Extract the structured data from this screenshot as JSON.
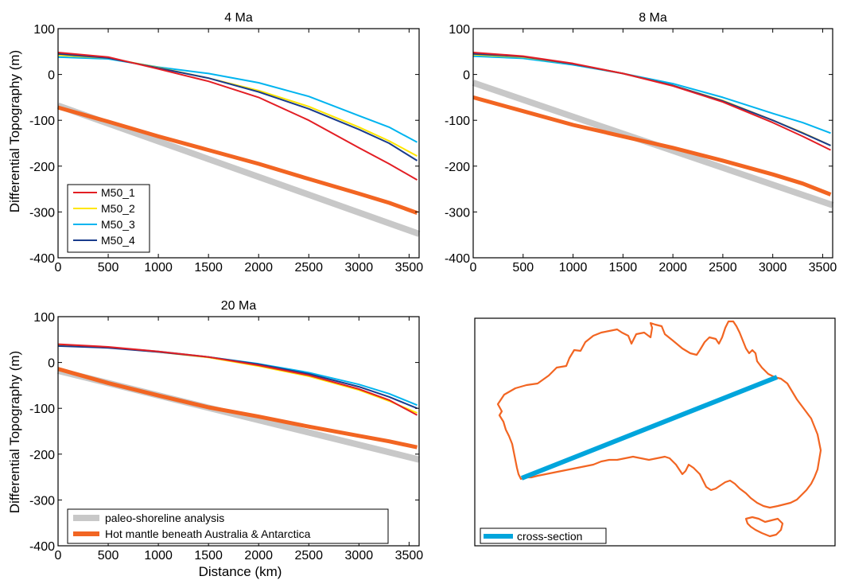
{
  "figure": {
    "xlabel": "Distance (km)",
    "ylabel": "Differential Topography (m)"
  },
  "colors": {
    "M50_1": "#e31e24",
    "M50_2": "#ffe600",
    "M50_3": "#00b4ef",
    "M50_4": "#1a3c8c",
    "paleo": "#c8c8c8",
    "hot": "#f26522",
    "map_outline": "#f26522",
    "cross_section": "#00a5dc"
  },
  "chart_data": [
    {
      "type": "line",
      "title": "4 Ma",
      "xlim": [
        0,
        3600
      ],
      "ylim": [
        -400,
        100
      ],
      "xticks": [
        0,
        500,
        1000,
        1500,
        2000,
        2500,
        3000,
        3500
      ],
      "yticks": [
        100,
        0,
        -100,
        -200,
        -300,
        -400
      ],
      "legend": {
        "placement": "lower-left",
        "entries": [
          "M50_1",
          "M50_2",
          "M50_3",
          "M50_4"
        ]
      },
      "series": [
        {
          "name": "M50_1",
          "color_key": "M50_1",
          "width": 2,
          "x": [
            0,
            500,
            1000,
            1500,
            2000,
            2500,
            3000,
            3300,
            3580
          ],
          "y": [
            48,
            38,
            12,
            -15,
            -50,
            -100,
            -160,
            -195,
            -230
          ]
        },
        {
          "name": "M50_2",
          "color_key": "M50_2",
          "width": 2,
          "x": [
            0,
            500,
            1000,
            1500,
            2000,
            2500,
            3000,
            3300,
            3580
          ],
          "y": [
            42,
            36,
            15,
            -8,
            -35,
            -70,
            -115,
            -145,
            -178
          ]
        },
        {
          "name": "M50_3",
          "color_key": "M50_3",
          "width": 2,
          "x": [
            0,
            500,
            1000,
            1500,
            2000,
            2500,
            3000,
            3300,
            3580
          ],
          "y": [
            38,
            34,
            16,
            2,
            -18,
            -48,
            -90,
            -115,
            -148
          ]
        },
        {
          "name": "M50_4",
          "color_key": "M50_4",
          "width": 2,
          "x": [
            0,
            500,
            1000,
            1500,
            2000,
            2500,
            3000,
            3300,
            3580
          ],
          "y": [
            45,
            36,
            14,
            -8,
            -38,
            -75,
            -120,
            -150,
            -188
          ]
        },
        {
          "name": "",
          "color_key": "paleo",
          "width": 8,
          "x": [
            0,
            3600
          ],
          "y": [
            -68,
            -348
          ]
        },
        {
          "name": "",
          "color_key": "hot",
          "width": 5,
          "x": [
            0,
            500,
            1000,
            1500,
            2000,
            2500,
            3000,
            3300,
            3580
          ],
          "y": [
            -72,
            -103,
            -135,
            -165,
            -195,
            -228,
            -260,
            -280,
            -302
          ]
        }
      ]
    },
    {
      "type": "line",
      "title": "8 Ma",
      "xlim": [
        0,
        3600
      ],
      "ylim": [
        -400,
        100
      ],
      "xticks": [
        0,
        500,
        1000,
        1500,
        2000,
        2500,
        3000,
        3500
      ],
      "yticks": [
        100,
        0,
        -100,
        -200,
        -300,
        -400
      ],
      "series": [
        {
          "name": "M50_1",
          "color_key": "M50_1",
          "width": 2,
          "x": [
            0,
            500,
            1000,
            1500,
            2000,
            2500,
            3000,
            3300,
            3580
          ],
          "y": [
            48,
            40,
            24,
            2,
            -25,
            -60,
            -105,
            -135,
            -165
          ]
        },
        {
          "name": "M50_2",
          "color_key": "M50_2",
          "width": 2,
          "x": [
            0,
            500,
            1000,
            1500,
            2000,
            2500,
            3000,
            3300,
            3580
          ],
          "y": [
            43,
            38,
            23,
            2,
            -24,
            -57,
            -100,
            -127,
            -155
          ]
        },
        {
          "name": "M50_3",
          "color_key": "M50_3",
          "width": 2,
          "x": [
            0,
            500,
            1000,
            1500,
            2000,
            2500,
            3000,
            3300,
            3580
          ],
          "y": [
            40,
            35,
            21,
            2,
            -20,
            -50,
            -85,
            -105,
            -128
          ]
        },
        {
          "name": "M50_4",
          "color_key": "M50_4",
          "width": 2,
          "x": [
            0,
            500,
            1000,
            1500,
            2000,
            2500,
            3000,
            3300,
            3580
          ],
          "y": [
            45,
            39,
            23,
            2,
            -24,
            -58,
            -100,
            -128,
            -155
          ]
        },
        {
          "name": "",
          "color_key": "paleo",
          "width": 8,
          "x": [
            0,
            3600
          ],
          "y": [
            -18,
            -285
          ]
        },
        {
          "name": "",
          "color_key": "hot",
          "width": 5,
          "x": [
            0,
            500,
            1000,
            1500,
            2000,
            2500,
            3000,
            3300,
            3580
          ],
          "y": [
            -50,
            -80,
            -110,
            -135,
            -160,
            -188,
            -218,
            -238,
            -262
          ]
        }
      ]
    },
    {
      "type": "line",
      "title": "20 Ma",
      "xlim": [
        0,
        3600
      ],
      "ylim": [
        -400,
        100
      ],
      "xticks": [
        0,
        500,
        1000,
        1500,
        2000,
        2500,
        3000,
        3500
      ],
      "yticks": [
        100,
        0,
        -100,
        -200,
        -300,
        -400
      ],
      "legend": {
        "placement": "bottom",
        "entries": [
          "paleo-shoreline analysis",
          "Hot mantle beneath Australia & Antarctica"
        ]
      },
      "series": [
        {
          "name": "M50_1",
          "color_key": "M50_1",
          "width": 2,
          "x": [
            0,
            500,
            1000,
            1500,
            2000,
            2500,
            3000,
            3300,
            3580
          ],
          "y": [
            40,
            34,
            24,
            12,
            -6,
            -28,
            -58,
            -82,
            -115
          ]
        },
        {
          "name": "M50_2",
          "color_key": "M50_2",
          "width": 2,
          "x": [
            0,
            500,
            1000,
            1500,
            2000,
            2500,
            3000,
            3300,
            3580
          ],
          "y": [
            38,
            33,
            23,
            11,
            -8,
            -30,
            -60,
            -84,
            -110
          ]
        },
        {
          "name": "M50_3",
          "color_key": "M50_3",
          "width": 2,
          "x": [
            0,
            500,
            1000,
            1500,
            2000,
            2500,
            3000,
            3300,
            3580
          ],
          "y": [
            37,
            33,
            24,
            12,
            -3,
            -22,
            -48,
            -68,
            -93
          ]
        },
        {
          "name": "M50_4",
          "color_key": "M50_4",
          "width": 2,
          "x": [
            0,
            500,
            1000,
            1500,
            2000,
            2500,
            3000,
            3300,
            3580
          ],
          "y": [
            36,
            32,
            23,
            12,
            -4,
            -25,
            -53,
            -75,
            -100
          ]
        },
        {
          "name": "paleo-shoreline analysis",
          "color_key": "paleo",
          "width": 8,
          "x": [
            0,
            3600
          ],
          "y": [
            -18,
            -212
          ]
        },
        {
          "name": "Hot mantle beneath Australia & Antarctica",
          "color_key": "hot",
          "width": 5,
          "x": [
            0,
            500,
            1000,
            1500,
            2000,
            2500,
            3000,
            3300,
            3580
          ],
          "y": [
            -14,
            -45,
            -72,
            -98,
            -118,
            -140,
            -160,
            -172,
            -185
          ]
        }
      ]
    }
  ],
  "map": {
    "legend_label": "cross-section"
  }
}
